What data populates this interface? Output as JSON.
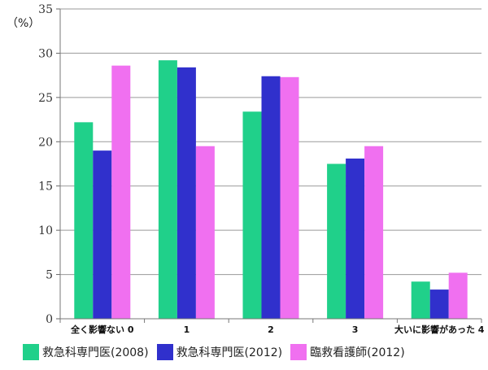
{
  "chart_data": {
    "type": "bar",
    "y_unit_label": "（%）",
    "categories": [
      "全く影響ない 0",
      "1",
      "2",
      "3",
      "大いに影響があった 4"
    ],
    "ylim": [
      0,
      35
    ],
    "yticks": [
      0,
      5,
      10,
      15,
      20,
      25,
      30,
      35
    ],
    "grid": true,
    "legend_position": "bottom",
    "series": [
      {
        "name": "救急科専門医(2008)",
        "color": "#20d08a",
        "values": [
          22.2,
          29.2,
          23.4,
          17.5,
          4.2
        ]
      },
      {
        "name": "救急科専門医(2012)",
        "color": "#3030cc",
        "values": [
          19.0,
          28.4,
          27.4,
          18.1,
          3.3
        ]
      },
      {
        "name": "臨救看護師(2012)",
        "color": "#f070f0",
        "values": [
          28.6,
          19.5,
          27.3,
          19.5,
          5.2
        ]
      }
    ]
  }
}
